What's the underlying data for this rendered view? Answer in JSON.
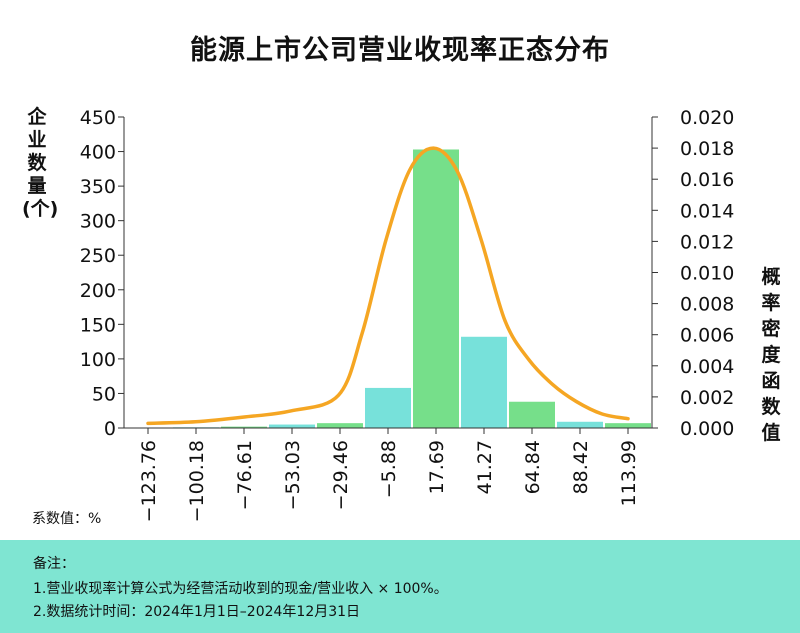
{
  "title": "能源上市公司营业收现率正态分布",
  "unit_label": "系数值：%",
  "footer": {
    "heading": "备注：",
    "note1": "1.营业收现率计算公式为经营活动收到的现金/营业收入 × 100%。",
    "note2": "2.数据统计时间：2024年1月1日–2024年12月31日"
  },
  "colors": {
    "bar_green": "#76df8a",
    "bar_cyan": "#77e1da",
    "curve": "#f5a623",
    "footer_bg": "#7fe5d2"
  },
  "chart_data": {
    "type": "bar",
    "title": "能源上市公司营业收现率正态分布",
    "ylabel": "企业数量(个)",
    "ylabel2": "概率密度函数值",
    "xlabel": "",
    "categories": [
      "-123.76",
      "-100.18",
      "-76.61",
      "-53.03",
      "-29.46",
      "-5.88",
      "17.69",
      "41.27",
      "64.84",
      "88.42",
      "113.99"
    ],
    "x_tick_labels": [
      "−123.76",
      "−100.18",
      "−76.61",
      "−53.03",
      "−29.46",
      "−5.88",
      "17.69",
      "41.27",
      "64.84",
      "88.42",
      "113.99"
    ],
    "values": [
      0,
      1,
      2,
      5,
      7,
      58,
      403,
      132,
      38,
      9,
      7
    ],
    "bar_colors": [
      "green",
      "cyan",
      "green",
      "cyan",
      "green",
      "cyan",
      "green",
      "cyan",
      "green",
      "cyan",
      "green"
    ],
    "ylim": [
      0,
      450
    ],
    "yticks": [
      "0",
      "50",
      "100",
      "150",
      "200",
      "250",
      "300",
      "350",
      "400",
      "450"
    ],
    "y2lim": [
      0,
      0.02
    ],
    "y2ticks": [
      "0.000",
      "0.002",
      "0.004",
      "0.006",
      "0.008",
      "0.010",
      "0.012",
      "0.014",
      "0.016",
      "0.018",
      "0.020"
    ],
    "density_curve": {
      "x": [
        -123.76,
        -100.18,
        -76.61,
        -53.03,
        -29.46,
        -17.67,
        -5.88,
        5.9,
        17.69,
        29.48,
        41.27,
        53.06,
        64.84,
        76.63,
        88.42,
        101.2,
        113.99
      ],
      "y": [
        0.0003,
        0.0004,
        0.0007,
        0.0011,
        0.0021,
        0.0061,
        0.0121,
        0.0166,
        0.018,
        0.0165,
        0.0121,
        0.0069,
        0.0044,
        0.0028,
        0.0017,
        0.0009,
        0.0006
      ]
    },
    "grid": false
  }
}
